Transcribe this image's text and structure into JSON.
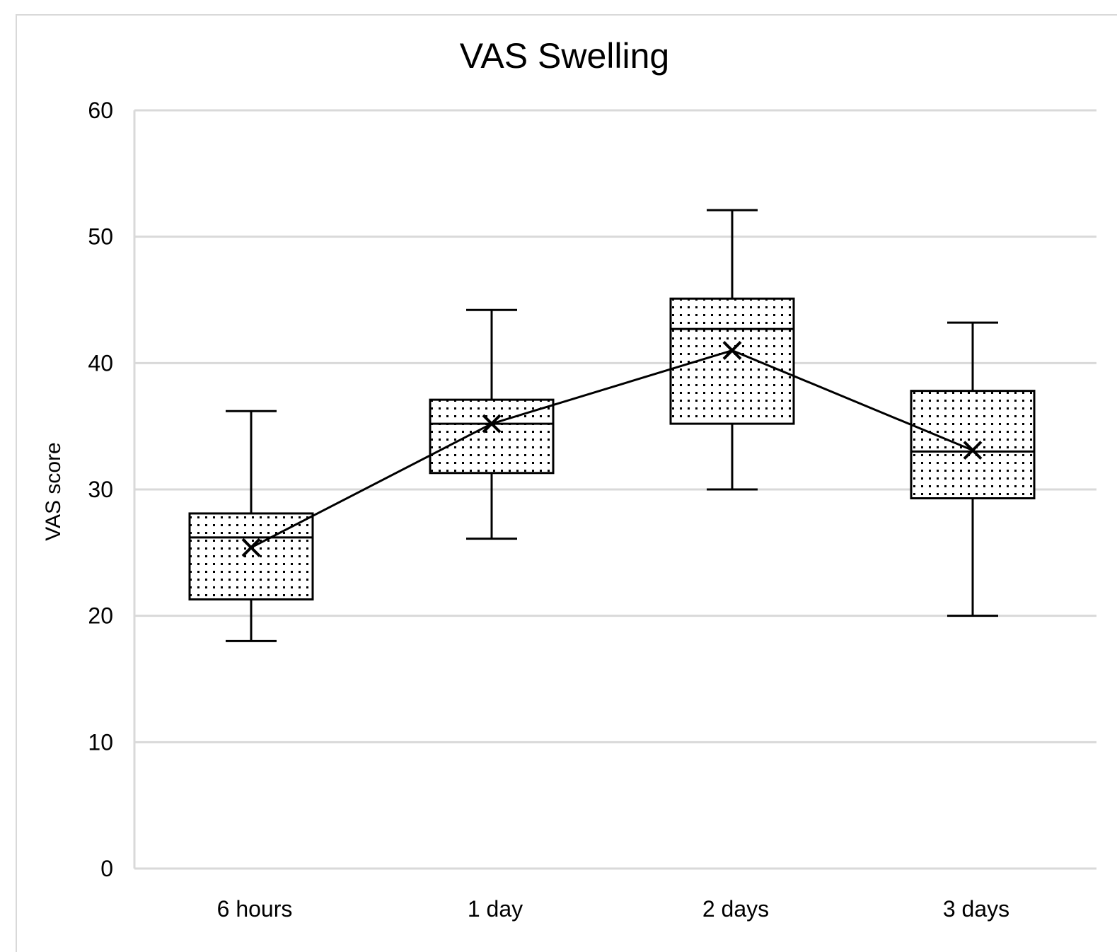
{
  "chart_data": {
    "type": "box",
    "title": "VAS Swelling",
    "xlabel": "",
    "ylabel": "VAS score",
    "ylim": [
      0,
      60
    ],
    "yticks": [
      "0",
      "10",
      "20",
      "30",
      "40",
      "50",
      "60"
    ],
    "grid": true,
    "categories": [
      "6 hours",
      "1 day",
      "2 days",
      "3 days"
    ],
    "series": [
      {
        "name": "6 hours",
        "min": 18,
        "q1": 21.3,
        "median": 26.2,
        "q3": 28.1,
        "max": 36.2,
        "mean": 25.4
      },
      {
        "name": "1 day",
        "min": 26.1,
        "q1": 31.3,
        "median": 35.2,
        "q3": 37.1,
        "max": 44.2,
        "mean": 35.2
      },
      {
        "name": "2 days",
        "min": 30,
        "q1": 35.2,
        "median": 42.7,
        "q3": 45.1,
        "max": 52.1,
        "mean": 41.0
      },
      {
        "name": "3 days",
        "min": 20,
        "q1": 29.3,
        "median": 33.0,
        "q3": 37.8,
        "max": 43.2,
        "mean": 33.1
      }
    ],
    "mean_line": true,
    "box_fill": "dotted",
    "colors": {
      "grid": "#d9d9d9",
      "stroke": "#000000",
      "background": "#ffffff"
    }
  }
}
